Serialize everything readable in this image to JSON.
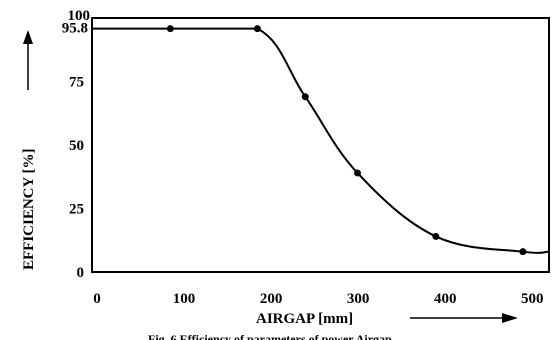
{
  "chart_data": {
    "type": "line",
    "title": "",
    "caption": "Fig. 6 Efficiency of parameters of power Airgap",
    "xlabel": "AIRGAP [mm]",
    "ylabel": "EFFICIENCY [%]",
    "xlim": [
      0,
      525
    ],
    "ylim": [
      0,
      100
    ],
    "x_ticks": [
      "0",
      "100",
      "200",
      "300",
      "400",
      "500"
    ],
    "x_tick_values": [
      0,
      100,
      200,
      300,
      400,
      500
    ],
    "y_ticks": [
      "0",
      "25",
      "50",
      "75",
      "95.8",
      "100"
    ],
    "y_tick_values": [
      0,
      25,
      50,
      75,
      95.8,
      100
    ],
    "grid": false,
    "legend": "none",
    "series": [
      {
        "x": [
          0,
          90,
          190,
          245,
          305,
          395,
          495,
          525
        ],
        "y": [
          95.8,
          95.8,
          95.8,
          69,
          39,
          14,
          8,
          8
        ],
        "markers_x": [
          90,
          190,
          245,
          305,
          395,
          495
        ],
        "markers_y": [
          95.8,
          95.8,
          69,
          39,
          14,
          8
        ]
      }
    ],
    "colors": {
      "line": "#000000",
      "axis": "#000000"
    }
  }
}
